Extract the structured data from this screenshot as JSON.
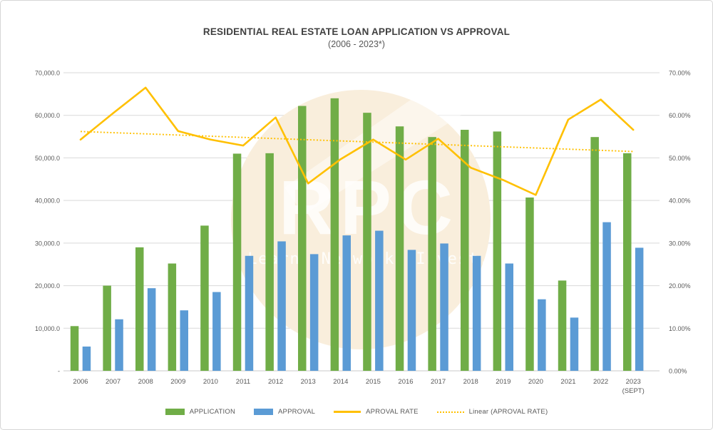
{
  "frame": {
    "background": "#FFFFFF",
    "border_color": "#D6D6D6"
  },
  "chart_data": {
    "type": "bar",
    "title": "RESIDENTIAL REAL ESTATE LOAN APPLICATION VS APPROVAL",
    "subtitle": "(2006 - 2023*)",
    "categories": [
      {
        "label": "2006"
      },
      {
        "label": "2007"
      },
      {
        "label": "2008"
      },
      {
        "label": "2009"
      },
      {
        "label": "2010"
      },
      {
        "label": "2011"
      },
      {
        "label": "2012"
      },
      {
        "label": "2013"
      },
      {
        "label": "2014"
      },
      {
        "label": "2015"
      },
      {
        "label": "2016"
      },
      {
        "label": "2017"
      },
      {
        "label": "2018"
      },
      {
        "label": "2019"
      },
      {
        "label": "2020"
      },
      {
        "label": "2021"
      },
      {
        "label": "2022"
      },
      {
        "label": "2023",
        "sublabel": "(SEPT)"
      }
    ],
    "series": [
      {
        "name": "APPLICATION",
        "type": "bar",
        "axis": "left",
        "color": "#70AD47",
        "values": [
          10500,
          20000,
          29000,
          25200,
          34100,
          51000,
          51100,
          62200,
          64000,
          60600,
          57400,
          54900,
          56600,
          56200,
          40700,
          21200,
          54900,
          51100
        ]
      },
      {
        "name": "APPROVAL",
        "type": "bar",
        "axis": "left",
        "color": "#5B9BD5",
        "values": [
          5700,
          12100,
          19400,
          14200,
          18500,
          27000,
          30400,
          27400,
          31800,
          32900,
          28400,
          29900,
          27000,
          25200,
          16800,
          12500,
          34900,
          28900
        ]
      },
      {
        "name": "APROVAL RATE",
        "type": "line",
        "axis": "right",
        "color": "#FFC000",
        "values": [
          54.3,
          60.5,
          66.5,
          56.3,
          54.3,
          52.9,
          59.5,
          44.0,
          49.7,
          54.3,
          49.6,
          54.5,
          47.7,
          44.8,
          41.3,
          59.0,
          63.7,
          56.6
        ]
      },
      {
        "name": "Linear (APROVAL RATE)",
        "type": "trendline",
        "axis": "right",
        "color": "#FFC000",
        "endpoints": [
          56.2,
          51.5
        ]
      }
    ],
    "left_axis": {
      "min": 0,
      "max": 70000,
      "tick_labels": [
        "-",
        "10,000.0",
        "20,000.0",
        "30,000.0",
        "40,000.0",
        "50,000.0",
        "60,000.0",
        "70,000.0"
      ]
    },
    "right_axis": {
      "min": 0,
      "max": 70,
      "unit": "%",
      "tick_labels": [
        "0.00%",
        "10.00%",
        "20.00%",
        "30.00%",
        "40.00%",
        "50.00%",
        "60.00%",
        "70.00%"
      ]
    },
    "gridlines": true,
    "legend_position": "bottom"
  },
  "watermark": {
    "brand": "RPC",
    "tagline": "Learn. Network. Invest.",
    "circle_color": "#F9EEDC",
    "text_color": "#FFFFFF"
  }
}
